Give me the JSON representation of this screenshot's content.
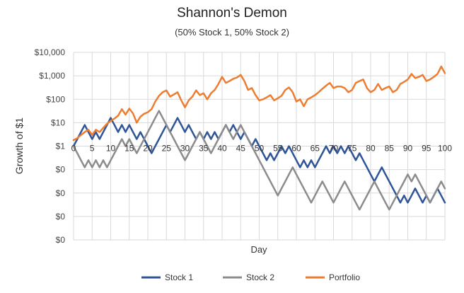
{
  "chart_data": {
    "type": "line",
    "title": "Shannon's Demon",
    "subtitle": "(50% Stock 1, 50% Stock 2)",
    "xlabel": "Day",
    "ylabel": "Growth of $1",
    "y_scale": "log",
    "ylim": [
      0.0001,
      10000
    ],
    "xlim": [
      0,
      100
    ],
    "x_ticks": [
      0,
      5,
      10,
      15,
      20,
      25,
      30,
      35,
      40,
      45,
      50,
      55,
      60,
      65,
      70,
      75,
      80,
      85,
      90,
      95,
      100
    ],
    "y_ticks": [
      {
        "value": 10000,
        "label": "$10,000"
      },
      {
        "value": 1000,
        "label": "$1,000"
      },
      {
        "value": 100,
        "label": "$100"
      },
      {
        "value": 10,
        "label": "$10"
      },
      {
        "value": 1,
        "label": "$1"
      },
      {
        "value": 0.1,
        "label": "$0"
      },
      {
        "value": 0.01,
        "label": "$0"
      },
      {
        "value": 0.001,
        "label": "$0"
      },
      {
        "value": 0.0001,
        "label": "$0"
      }
    ],
    "grid": true,
    "legend_position": "bottom",
    "series": [
      {
        "name": "Stock 1",
        "color": "#2F5597",
        "x": [
          0,
          1,
          2,
          3,
          4,
          5,
          6,
          7,
          8,
          9,
          10,
          11,
          12,
          13,
          14,
          15,
          16,
          17,
          18,
          19,
          20,
          21,
          22,
          23,
          24,
          25,
          26,
          27,
          28,
          29,
          30,
          31,
          32,
          33,
          34,
          35,
          36,
          37,
          38,
          39,
          40,
          41,
          42,
          43,
          44,
          45,
          46,
          47,
          48,
          49,
          50,
          51,
          52,
          53,
          54,
          55,
          56,
          57,
          58,
          59,
          60,
          61,
          62,
          63,
          64,
          65,
          66,
          67,
          68,
          69,
          70,
          71,
          72,
          73,
          74,
          75,
          76,
          77,
          78,
          79,
          80,
          81,
          82,
          83,
          84,
          85,
          86,
          87,
          88,
          89,
          90,
          91,
          92,
          93,
          94,
          95,
          96,
          97,
          98,
          99,
          100
        ],
        "y": [
          1,
          2,
          4,
          8,
          4,
          2,
          4,
          2,
          4,
          8,
          16,
          8,
          4,
          8,
          4,
          8,
          4,
          2,
          4,
          2,
          1,
          0.5,
          1,
          2,
          4,
          8,
          4,
          8,
          16,
          8,
          4,
          8,
          4,
          2,
          4,
          2,
          4,
          2,
          4,
          2,
          4,
          8,
          4,
          8,
          4,
          2,
          4,
          2,
          1,
          2,
          1,
          0.5,
          0.25,
          0.5,
          0.25,
          0.5,
          1,
          0.5,
          1,
          0.5,
          0.25,
          0.125,
          0.25,
          0.125,
          0.25,
          0.125,
          0.25,
          0.5,
          1,
          0.5,
          1,
          0.5,
          1,
          0.5,
          1,
          0.5,
          0.25,
          0.5,
          0.25,
          0.125,
          0.0625,
          0.03125,
          0.0625,
          0.125,
          0.0625,
          0.03125,
          0.015625,
          0.0078125,
          0.00390625,
          0.0078125,
          0.00390625,
          0.0078125,
          0.015625,
          0.0078125,
          0.00390625,
          0.0078125,
          0.00390625,
          0.0078125,
          0.015625,
          0.0078125,
          0.00390625
        ]
      },
      {
        "name": "Stock 2",
        "color": "#8C8C8C",
        "x": [
          0,
          1,
          2,
          3,
          4,
          5,
          6,
          7,
          8,
          9,
          10,
          11,
          12,
          13,
          14,
          15,
          16,
          17,
          18,
          19,
          20,
          21,
          22,
          23,
          24,
          25,
          26,
          27,
          28,
          29,
          30,
          31,
          32,
          33,
          34,
          35,
          36,
          37,
          38,
          39,
          40,
          41,
          42,
          43,
          44,
          45,
          46,
          47,
          48,
          49,
          50,
          51,
          52,
          53,
          54,
          55,
          56,
          57,
          58,
          59,
          60,
          61,
          62,
          63,
          64,
          65,
          66,
          67,
          68,
          69,
          70,
          71,
          72,
          73,
          74,
          75,
          76,
          77,
          78,
          79,
          80,
          81,
          82,
          83,
          84,
          85,
          86,
          87,
          88,
          89,
          90,
          91,
          92,
          93,
          94,
          95,
          96,
          97,
          98,
          99,
          100
        ],
        "y": [
          1,
          0.5,
          0.25,
          0.125,
          0.25,
          0.125,
          0.25,
          0.125,
          0.25,
          0.125,
          0.25,
          0.5,
          1,
          2,
          1,
          2,
          1,
          0.5,
          1,
          2,
          4,
          8,
          16,
          32,
          16,
          8,
          4,
          2,
          1,
          0.5,
          0.25,
          0.5,
          1,
          2,
          4,
          2,
          1,
          0.5,
          1,
          2,
          4,
          8,
          4,
          2,
          4,
          8,
          4,
          2,
          1,
          0.5,
          0.25,
          0.125,
          0.0625,
          0.03125,
          0.015625,
          0.0078125,
          0.015625,
          0.03125,
          0.0625,
          0.125,
          0.0625,
          0.03125,
          0.015625,
          0.0078125,
          0.00390625,
          0.0078125,
          0.015625,
          0.03125,
          0.015625,
          0.0078125,
          0.00390625,
          0.0078125,
          0.015625,
          0.03125,
          0.015625,
          0.0078125,
          0.00390625,
          0.001953125,
          0.00390625,
          0.0078125,
          0.015625,
          0.03125,
          0.015625,
          0.0078125,
          0.00390625,
          0.001953125,
          0.00390625,
          0.0078125,
          0.015625,
          0.03125,
          0.0625,
          0.03125,
          0.0625,
          0.03125,
          0.015625,
          0.0078125,
          0.00390625,
          0.0078125,
          0.015625,
          0.03125,
          0.015625
        ]
      },
      {
        "name": "Portfolio",
        "color": "#ED7D31",
        "x": [
          0,
          1,
          2,
          3,
          4,
          5,
          6,
          7,
          8,
          9,
          10,
          11,
          12,
          13,
          14,
          15,
          16,
          17,
          18,
          19,
          20,
          21,
          22,
          23,
          24,
          25,
          26,
          27,
          28,
          29,
          30,
          31,
          32,
          33,
          34,
          35,
          36,
          37,
          38,
          39,
          40,
          41,
          42,
          43,
          44,
          45,
          46,
          47,
          48,
          49,
          50,
          51,
          52,
          53,
          54,
          55,
          56,
          57,
          58,
          59,
          60,
          61,
          62,
          63,
          64,
          65,
          66,
          67,
          68,
          69,
          70,
          71,
          72,
          73,
          74,
          75,
          76,
          77,
          78,
          79,
          80,
          81,
          82,
          83,
          84,
          85,
          86,
          87,
          88,
          89,
          90,
          91,
          92,
          93,
          94,
          95,
          96,
          97,
          98,
          99,
          100
        ],
        "y": [
          1.8,
          2.2,
          3,
          4,
          5,
          3,
          5,
          4,
          6,
          9,
          12,
          15,
          20,
          38,
          22,
          40,
          25,
          10,
          18,
          24,
          28,
          38,
          80,
          140,
          200,
          240,
          130,
          160,
          200,
          90,
          45,
          90,
          130,
          240,
          150,
          180,
          100,
          180,
          250,
          450,
          900,
          500,
          600,
          750,
          850,
          1100,
          600,
          250,
          300,
          150,
          90,
          100,
          120,
          150,
          90,
          110,
          140,
          250,
          320,
          200,
          80,
          100,
          50,
          100,
          120,
          150,
          200,
          280,
          380,
          500,
          300,
          350,
          350,
          300,
          200,
          250,
          500,
          600,
          700,
          300,
          200,
          250,
          450,
          250,
          300,
          350,
          200,
          250,
          450,
          550,
          700,
          1200,
          800,
          900,
          1100,
          600,
          700,
          900,
          1200,
          2500,
          1300
        ]
      }
    ]
  }
}
